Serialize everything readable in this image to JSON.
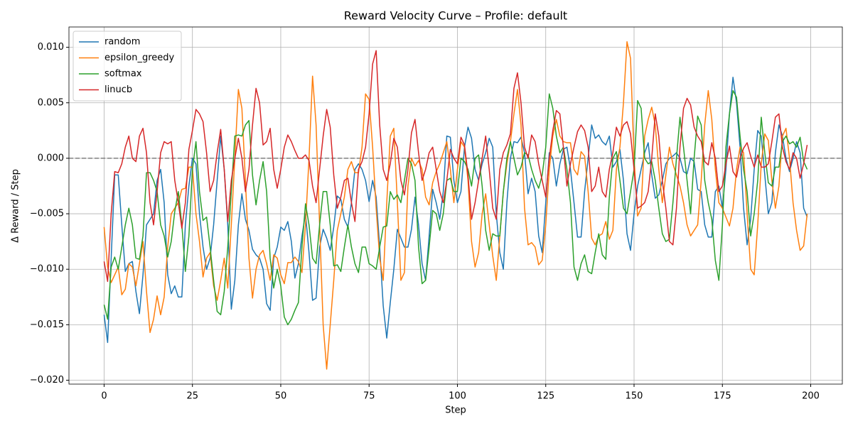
{
  "chart_data": {
    "type": "line",
    "title": "Reward Velocity Curve – Profile: default",
    "xlabel": "Step",
    "ylabel": "Δ Reward / Step",
    "xlim": [
      -9.95,
      208.95
    ],
    "ylim": [
      -0.02035,
      0.01183
    ],
    "xticks": [
      0,
      25,
      50,
      75,
      100,
      125,
      150,
      175,
      200
    ],
    "yticks": [
      {
        "value": -0.02,
        "label": "−0.020"
      },
      {
        "value": -0.015,
        "label": "−0.015"
      },
      {
        "value": -0.01,
        "label": "−0.010"
      },
      {
        "value": -0.005,
        "label": "−0.005"
      },
      {
        "value": 0,
        "label": "0.000"
      },
      {
        "value": 0.005,
        "label": "0.005"
      },
      {
        "value": 0.01,
        "label": "0.010"
      }
    ],
    "grid": true,
    "legend": "upper left",
    "reference_line": {
      "y": 0,
      "color": "#808080",
      "style": "dashed"
    },
    "x": [
      0,
      1,
      2,
      3,
      4,
      5,
      6,
      7,
      8,
      9,
      10,
      11,
      12,
      13,
      14,
      15,
      16,
      17,
      18,
      19,
      20,
      21,
      22,
      23,
      24,
      25,
      26,
      27,
      28,
      29,
      30,
      31,
      32,
      33,
      34,
      35,
      36,
      37,
      38,
      39,
      40,
      41,
      42,
      43,
      44,
      45,
      46,
      47,
      48,
      49,
      50,
      51,
      52,
      53,
      54,
      55,
      56,
      57,
      58,
      59,
      60,
      61,
      62,
      63,
      64,
      65,
      66,
      67,
      68,
      69,
      70,
      71,
      72,
      73,
      74,
      75,
      76,
      77,
      78,
      79,
      80,
      81,
      82,
      83,
      84,
      85,
      86,
      87,
      88,
      89,
      90,
      91,
      92,
      93,
      94,
      95,
      96,
      97,
      98,
      99,
      100,
      101,
      102,
      103,
      104,
      105,
      106,
      107,
      108,
      109,
      110,
      111,
      112,
      113,
      114,
      115,
      116,
      117,
      118,
      119,
      120,
      121,
      122,
      123,
      124,
      125,
      126,
      127,
      128,
      129,
      130,
      131,
      132,
      133,
      134,
      135,
      136,
      137,
      138,
      139,
      140,
      141,
      142,
      143,
      144,
      145,
      146,
      147,
      148,
      149,
      150,
      151,
      152,
      153,
      154,
      155,
      156,
      157,
      158,
      159,
      160,
      161,
      162,
      163,
      164,
      165,
      166,
      167,
      168,
      169,
      170,
      171,
      172,
      173,
      174,
      175,
      176,
      177,
      178,
      179,
      180,
      181,
      182,
      183,
      184,
      185,
      186,
      187,
      188,
      189,
      190,
      191,
      192,
      193,
      194,
      195,
      196,
      197,
      198,
      199
    ],
    "series": [
      {
        "name": "random",
        "color": "#1f77b4",
        "values": [
          -0.0141,
          -0.0166,
          -0.009,
          -0.0015,
          -0.0015,
          -0.006,
          -0.0102,
          -0.0095,
          -0.0093,
          -0.012,
          -0.014,
          -0.0105,
          -0.006,
          -0.0055,
          -0.005,
          -0.002,
          -0.001,
          -0.004,
          -0.0105,
          -0.0122,
          -0.0115,
          -0.0125,
          -0.0125,
          -0.006,
          -0.0025,
          0,
          -0.0005,
          -0.005,
          -0.008,
          -0.01,
          -0.009,
          -0.006,
          -0.002,
          0.002,
          -0.001,
          -0.006,
          -0.0136,
          -0.011,
          -0.006,
          -0.0032,
          -0.0055,
          -0.0065,
          -0.0082,
          -0.0087,
          -0.009,
          -0.01,
          -0.0131,
          -0.0137,
          -0.009,
          -0.008,
          -0.0062,
          -0.0065,
          -0.0057,
          -0.0075,
          -0.0108,
          -0.0095,
          -0.007,
          -0.005,
          -0.0085,
          -0.0128,
          -0.0126,
          -0.008,
          -0.0064,
          -0.0072,
          -0.0083,
          -0.0062,
          -0.0034,
          -0.0037,
          -0.0055,
          -0.0062,
          -0.004,
          -0.001,
          -0.0005,
          -0.001,
          -0.002,
          -0.0039,
          -0.002,
          -0.0035,
          -0.008,
          -0.0133,
          -0.0162,
          -0.013,
          -0.01,
          -0.0064,
          -0.0072,
          -0.008,
          -0.008,
          -0.0064,
          -0.0035,
          -0.006,
          -0.0095,
          -0.011,
          -0.007,
          -0.0028,
          -0.004,
          -0.0055,
          -0.003,
          0.002,
          0.0019,
          -0.002,
          -0.004,
          -0.003,
          0.001,
          0.0028,
          0.0018,
          -0.001,
          -0.002,
          -0.0005,
          0.0005,
          0.0018,
          0.001,
          -0.005,
          -0.0085,
          -0.01,
          -0.004,
          0,
          0.0015,
          0.0014,
          0.0019,
          0.0005,
          -0.0032,
          -0.0018,
          -0.003,
          -0.007,
          -0.0085,
          -0.004,
          0.0005,
          0,
          -0.0025,
          -0.0005,
          0.0008,
          0.001,
          -0.001,
          -0.004,
          -0.0071,
          -0.0071,
          -0.003,
          0,
          0.003,
          0.0018,
          0.0021,
          0.0015,
          0.0012,
          0.002,
          -0.0008,
          -0.0003,
          0.0008,
          -0.002,
          -0.0068,
          -0.0083,
          -0.005,
          -0.0025,
          -0.001,
          0.0005,
          0.0014,
          -0.0015,
          -0.0036,
          -0.0033,
          -0.002,
          -0.0005,
          0,
          0.0002,
          0.0005,
          0,
          -0.0012,
          -0.0014,
          0,
          -0.0003,
          -0.0028,
          -0.003,
          -0.006,
          -0.0071,
          -0.0071,
          -0.003,
          -0.0025,
          -0.0045,
          -0.001,
          0.004,
          0.0073,
          0.005,
          0.001,
          -0.0045,
          -0.0078,
          -0.0055,
          -0.001,
          0.0025,
          0.002,
          -0.0015,
          -0.005,
          -0.004,
          0.0005,
          0.003,
          0.002,
          0,
          -0.0012,
          0,
          0.0015,
          0.0005,
          -0.0045,
          -0.0053
        ]
      },
      {
        "name": "epsilon_greedy",
        "color": "#ff7f0e",
        "values": [
          -0.0062,
          -0.0098,
          -0.0112,
          -0.0105,
          -0.0098,
          -0.0123,
          -0.0118,
          -0.0095,
          -0.0098,
          -0.0115,
          -0.0095,
          -0.0075,
          -0.012,
          -0.0157,
          -0.0145,
          -0.0124,
          -0.0141,
          -0.0125,
          -0.008,
          -0.005,
          -0.0045,
          -0.004,
          -0.0028,
          -0.0027,
          -0.0008,
          -0.0008,
          -0.005,
          -0.0075,
          -0.0107,
          -0.009,
          -0.0085,
          -0.0115,
          -0.0128,
          -0.011,
          -0.009,
          -0.0117,
          -0.006,
          0,
          0.0062,
          0.0045,
          -0.002,
          -0.009,
          -0.0126,
          -0.01,
          -0.0087,
          -0.0083,
          -0.0095,
          -0.011,
          -0.0087,
          -0.009,
          -0.0105,
          -0.0113,
          -0.0094,
          -0.0094,
          -0.0089,
          -0.0093,
          -0.0103,
          -0.006,
          0,
          0.0074,
          0.003,
          -0.006,
          -0.015,
          -0.019,
          -0.015,
          -0.011,
          -0.0065,
          -0.005,
          -0.0035,
          -0.001,
          -0.0003,
          -0.0013,
          -0.0013,
          0.001,
          0.0058,
          0.0053,
          0.001,
          -0.0045,
          -0.009,
          -0.011,
          -0.004,
          0.002,
          0.0027,
          -0.004,
          -0.011,
          -0.0103,
          -0.0025,
          0,
          -0.0007,
          -0.0002,
          -0.001,
          -0.0035,
          -0.0042,
          -0.0022,
          -0.0012,
          -0.0005,
          0.0005,
          0.0015,
          -0.001,
          -0.004,
          -0.001,
          0.0015,
          0.001,
          -0.002,
          -0.0075,
          -0.0098,
          -0.0085,
          -0.005,
          -0.0032,
          -0.006,
          -0.0088,
          -0.011,
          -0.007,
          -0.003,
          -0.0005,
          0.0015,
          0.004,
          0.0062,
          0.003,
          -0.0045,
          -0.0078,
          -0.0076,
          -0.008,
          -0.0096,
          -0.0092,
          -0.006,
          -0.001,
          0.002,
          0.0035,
          0.002,
          0.0015,
          0.0014,
          0.0014,
          -0.001,
          -0.0015,
          0.0006,
          0.0002,
          -0.003,
          -0.0072,
          -0.0078,
          -0.007,
          -0.0068,
          -0.0057,
          -0.0073,
          -0.0065,
          -0.001,
          0.001,
          0.005,
          0.0105,
          0.009,
          0,
          -0.0052,
          -0.0045,
          0.002,
          0.0035,
          0.0046,
          0.003,
          -0.001,
          -0.004,
          -0.0015,
          0.001,
          -0.0005,
          -0.0015,
          -0.0025,
          -0.004,
          -0.006,
          -0.007,
          -0.0065,
          -0.006,
          -0.002,
          0.003,
          0.0061,
          0.0035,
          -0.001,
          -0.004,
          -0.0045,
          -0.0053,
          -0.0061,
          -0.0045,
          -0.001,
          0.001,
          0.0005,
          -0.005,
          -0.01,
          -0.0105,
          -0.006,
          -0.0005,
          0.0022,
          0.0016,
          -0.002,
          -0.0045,
          -0.0025,
          0.002,
          0.0027,
          0,
          -0.004,
          -0.0065,
          -0.0083,
          -0.0079,
          -0.005
        ]
      },
      {
        "name": "softmax",
        "color": "#2ca02c",
        "values": [
          -0.0132,
          -0.0145,
          -0.0098,
          -0.0089,
          -0.01,
          -0.008,
          -0.006,
          -0.0045,
          -0.006,
          -0.009,
          -0.0091,
          -0.007,
          -0.0013,
          -0.0013,
          -0.002,
          -0.003,
          -0.006,
          -0.007,
          -0.0089,
          -0.0075,
          -0.0048,
          -0.003,
          -0.006,
          -0.0102,
          -0.007,
          -0.001,
          0.0015,
          -0.003,
          -0.0056,
          -0.0053,
          -0.008,
          -0.011,
          -0.0138,
          -0.0141,
          -0.012,
          -0.008,
          -0.003,
          0.002,
          0.0021,
          0.002,
          0.003,
          0.0034,
          -0.0015,
          -0.0042,
          -0.002,
          -0.0003,
          -0.003,
          -0.009,
          -0.0117,
          -0.01,
          -0.0115,
          -0.0143,
          -0.015,
          -0.0145,
          -0.0137,
          -0.013,
          -0.008,
          -0.0041,
          -0.006,
          -0.009,
          -0.0095,
          -0.006,
          -0.003,
          -0.003,
          -0.006,
          -0.0097,
          -0.0096,
          -0.0102,
          -0.008,
          -0.006,
          -0.008,
          -0.0095,
          -0.0103,
          -0.008,
          -0.008,
          -0.0095,
          -0.0097,
          -0.01,
          -0.008,
          -0.0062,
          -0.0061,
          -0.003,
          -0.0037,
          -0.0033,
          -0.004,
          -0.002,
          0,
          -0.0005,
          -0.002,
          -0.008,
          -0.0113,
          -0.011,
          -0.008,
          -0.0047,
          -0.005,
          -0.0065,
          -0.005,
          -0.002,
          -0.0018,
          -0.003,
          -0.003,
          0,
          -0.0003,
          -0.001,
          -0.0025,
          0,
          0.0003,
          -0.0025,
          -0.0065,
          -0.0083,
          -0.0068,
          -0.007,
          -0.007,
          -0.003,
          0,
          0.0015,
          0,
          -0.0015,
          -0.0008,
          0.0005,
          0.0003,
          -0.001,
          -0.002,
          -0.0027,
          -0.0015,
          0.001,
          0.0058,
          0.0045,
          0.002,
          0.0005,
          0.001,
          -0.001,
          -0.004,
          -0.0098,
          -0.011,
          -0.0095,
          -0.0087,
          -0.0102,
          -0.0104,
          -0.0085,
          -0.0068,
          -0.0087,
          -0.0091,
          -0.0035,
          0,
          0.0006,
          -0.002,
          -0.0045,
          -0.005,
          -0.003,
          -0.001,
          0.0052,
          0.0045,
          0,
          -0.0005,
          -0.0003,
          -0.002,
          -0.0045,
          -0.0068,
          -0.0075,
          -0.0073,
          -0.004,
          0,
          0.0037,
          0.001,
          -0.002,
          -0.005,
          0,
          0.0038,
          0.003,
          -0.002,
          -0.004,
          -0.0055,
          -0.0092,
          -0.011,
          -0.006,
          0.001,
          0.004,
          0.0061,
          0.0055,
          0.002,
          -0.001,
          -0.003,
          -0.007,
          -0.005,
          -0.002,
          0.0037,
          0.0005,
          -0.0022,
          -0.0025,
          -0.0008,
          -0.0008,
          0.0015,
          0.002,
          0.0013,
          0.0015,
          0.001,
          0.0019,
          -0.0003,
          -0.001
        ]
      },
      {
        "name": "linucb",
        "color": "#d62728",
        "values": [
          -0.0093,
          -0.0111,
          -0.005,
          -0.0012,
          -0.0013,
          -0.0005,
          0.001,
          0.002,
          0,
          -0.0003,
          0.002,
          0.0027,
          0.0005,
          -0.004,
          -0.006,
          -0.003,
          0.0005,
          0.0015,
          0.0013,
          0.0015,
          -0.002,
          -0.004,
          -0.0063,
          -0.004,
          0.0008,
          0.0025,
          0.0044,
          0.004,
          0.0033,
          0.0005,
          -0.003,
          -0.002,
          0.0005,
          0.0026,
          -0.001,
          -0.0057,
          -0.002,
          0,
          0.0018,
          0,
          -0.003,
          -0.001,
          0.003,
          0.0063,
          0.005,
          0.0012,
          0.0015,
          0.0027,
          -0.001,
          -0.0027,
          -0.001,
          0.001,
          0.0021,
          0.0015,
          0.0007,
          0,
          0,
          0.0003,
          -0.0002,
          -0.0025,
          -0.004,
          -0.001,
          0.002,
          0.0044,
          0.0028,
          -0.0015,
          -0.0045,
          -0.0035,
          -0.002,
          -0.0018,
          -0.004,
          -0.0057,
          -0.001,
          -0.0003,
          0.001,
          0.004,
          0.0085,
          0.0097,
          0.003,
          -0.001,
          -0.002,
          -0.0005,
          0.0018,
          0.001,
          -0.002,
          -0.0033,
          -0.001,
          0.0023,
          0.0035,
          0.0005,
          -0.002,
          -0.001,
          0.0005,
          0.001,
          -0.001,
          -0.003,
          -0.004,
          -0.002,
          0.0008,
          0,
          -0.0005,
          0.0019,
          0.0012,
          -0.0015,
          -0.0055,
          -0.004,
          -0.002,
          0,
          0.002,
          -0.001,
          -0.0045,
          -0.0055,
          -0.001,
          0.0005,
          0.0012,
          0.0022,
          0.0063,
          0.0077,
          0.005,
          0.001,
          0,
          0.0021,
          0.0015,
          -0.0005,
          -0.002,
          -0.0035,
          0,
          0.0025,
          0.0043,
          0.004,
          0.001,
          -0.0025,
          -0.0005,
          0.001,
          0.0024,
          0.003,
          0.0025,
          0.001,
          -0.003,
          -0.0025,
          -0.0008,
          -0.003,
          -0.0035,
          -0.001,
          0.0005,
          0.0028,
          0.002,
          0.003,
          0.0033,
          0.0022,
          -0.001,
          -0.0045,
          -0.0043,
          -0.004,
          -0.003,
          0,
          0.004,
          0.002,
          -0.002,
          -0.0045,
          -0.0075,
          -0.0078,
          -0.0045,
          0.001,
          0.0045,
          0.0054,
          0.0048,
          0.0028,
          0.002,
          0.0015,
          -0.0003,
          -0.0006,
          0.0014,
          0,
          -0.003,
          -0.0025,
          -0.0005,
          0.0011,
          -0.0012,
          -0.0017,
          0,
          0.0009,
          0.0014,
          0.0002,
          -0.0008,
          0.0003,
          -0.0008,
          -0.0008,
          -0.0005,
          0.0015,
          0.0037,
          0.004,
          0.001,
          -0.0003,
          -0.001,
          0.0005,
          0,
          -0.0018,
          -0.0005,
          0.0012
        ]
      }
    ]
  }
}
